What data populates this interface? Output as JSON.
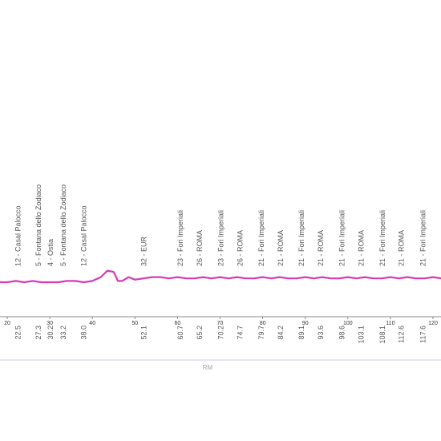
{
  "chart_data": {
    "type": "line",
    "title": "",
    "xlabel": "",
    "ylabel": "",
    "x_ticks": [
      20,
      30,
      40,
      50,
      60,
      70,
      80,
      90,
      100,
      110,
      120
    ],
    "region_label": "RM",
    "waypoints": [
      {
        "km": 22.5,
        "label": "12 - Casal Palocco"
      },
      {
        "km": 27.3,
        "label": "5 - Fontana dello Zodiaco"
      },
      {
        "km": 30.2,
        "label": "4 - Ostia"
      },
      {
        "km": 33.2,
        "label": "5 - Fontana dello Zodiaco"
      },
      {
        "km": 38.0,
        "label": "12 - Casal Palocco"
      },
      {
        "km": 52.1,
        "label": "32 - EUR"
      },
      {
        "km": 60.7,
        "label": "23 - Fori Imperiali"
      },
      {
        "km": 65.2,
        "label": "26 - ROMA"
      },
      {
        "km": 70.2,
        "label": "23 - Fori Imperiali"
      },
      {
        "km": 74.7,
        "label": "26 - ROMA"
      },
      {
        "km": 79.7,
        "label": "21 - Fori Imperiali"
      },
      {
        "km": 84.2,
        "label": "21 - ROMA"
      },
      {
        "km": 89.1,
        "label": "21 - Fori Imperiali"
      },
      {
        "km": 93.6,
        "label": "21 - ROMA"
      },
      {
        "km": 98.6,
        "label": "21 - Fori Imperiali"
      },
      {
        "km": 103.1,
        "label": "21 - ROMA"
      },
      {
        "km": 108.1,
        "label": "21 - Fori Imperiali"
      },
      {
        "km": 112.6,
        "label": "21 - ROMA"
      },
      {
        "km": 117.6,
        "label": "21 - Fori Imperiali"
      }
    ],
    "profile": [
      {
        "km": 15.0,
        "alt": 13
      },
      {
        "km": 16.0,
        "alt": 13
      },
      {
        "km": 17.0,
        "alt": 10
      },
      {
        "km": 18.5,
        "alt": 9
      },
      {
        "km": 20.0,
        "alt": 9
      },
      {
        "km": 22.0,
        "alt": 10
      },
      {
        "km": 24.0,
        "alt": 9
      },
      {
        "km": 26.0,
        "alt": 10
      },
      {
        "km": 28.0,
        "alt": 9
      },
      {
        "km": 30.0,
        "alt": 9
      },
      {
        "km": 32.0,
        "alt": 9
      },
      {
        "km": 34.0,
        "alt": 10
      },
      {
        "km": 36.0,
        "alt": 10
      },
      {
        "km": 38.0,
        "alt": 9
      },
      {
        "km": 40.0,
        "alt": 10
      },
      {
        "km": 42.0,
        "alt": 13
      },
      {
        "km": 43.5,
        "alt": 18
      },
      {
        "km": 45.0,
        "alt": 17
      },
      {
        "km": 46.0,
        "alt": 10
      },
      {
        "km": 47.0,
        "alt": 10
      },
      {
        "km": 48.5,
        "alt": 13
      },
      {
        "km": 50.0,
        "alt": 11
      },
      {
        "km": 52.0,
        "alt": 12
      },
      {
        "km": 54.0,
        "alt": 13
      },
      {
        "km": 56.0,
        "alt": 13
      },
      {
        "km": 58.0,
        "alt": 12
      },
      {
        "km": 60.0,
        "alt": 13
      },
      {
        "km": 62.0,
        "alt": 12
      },
      {
        "km": 64.0,
        "alt": 12
      },
      {
        "km": 66.0,
        "alt": 13
      },
      {
        "km": 68.0,
        "alt": 12
      },
      {
        "km": 70.0,
        "alt": 13
      },
      {
        "km": 72.0,
        "alt": 12
      },
      {
        "km": 74.0,
        "alt": 13
      },
      {
        "km": 76.0,
        "alt": 12
      },
      {
        "km": 78.0,
        "alt": 12
      },
      {
        "km": 80.0,
        "alt": 13
      },
      {
        "km": 82.0,
        "alt": 12
      },
      {
        "km": 84.0,
        "alt": 13
      },
      {
        "km": 86.0,
        "alt": 12
      },
      {
        "km": 88.0,
        "alt": 12
      },
      {
        "km": 90.0,
        "alt": 13
      },
      {
        "km": 92.0,
        "alt": 12
      },
      {
        "km": 94.0,
        "alt": 13
      },
      {
        "km": 96.0,
        "alt": 12
      },
      {
        "km": 98.0,
        "alt": 12
      },
      {
        "km": 100.0,
        "alt": 13
      },
      {
        "km": 102.0,
        "alt": 12
      },
      {
        "km": 104.0,
        "alt": 13
      },
      {
        "km": 106.0,
        "alt": 12
      },
      {
        "km": 108.0,
        "alt": 12
      },
      {
        "km": 110.0,
        "alt": 13
      },
      {
        "km": 112.0,
        "alt": 12
      },
      {
        "km": 114.0,
        "alt": 13
      },
      {
        "km": 116.0,
        "alt": 12
      },
      {
        "km": 118.0,
        "alt": 12
      },
      {
        "km": 120.0,
        "alt": 13
      },
      {
        "km": 122.0,
        "alt": 12
      },
      {
        "km": 124.0,
        "alt": 12
      },
      {
        "km": 126.0,
        "alt": 13
      }
    ],
    "colors": {
      "line": "#d63ab5",
      "axis": "#888888",
      "text": "#555555",
      "region": "#9aa3b8"
    }
  }
}
